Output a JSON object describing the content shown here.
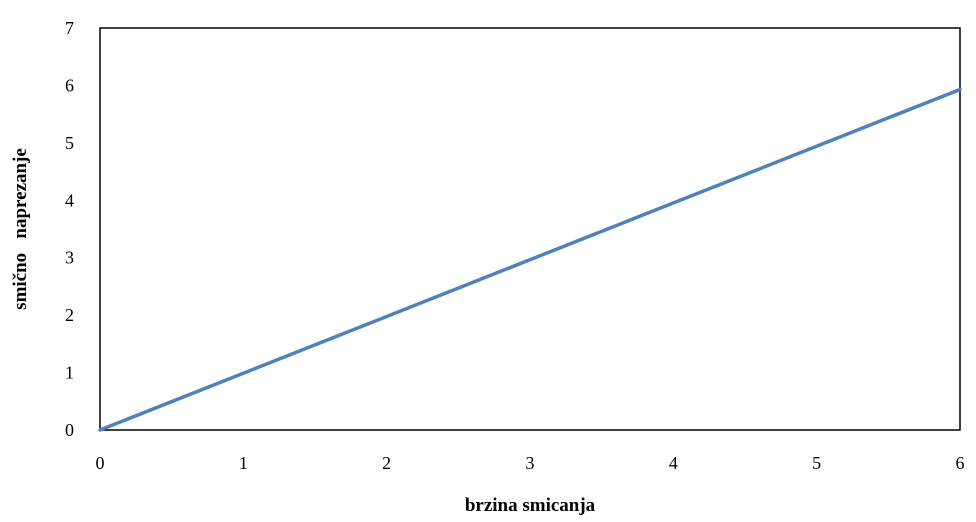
{
  "chart_data": {
    "type": "line",
    "title": "",
    "xlabel": "brzina smicanja",
    "ylabel": "smično   naprezanje",
    "xlim": [
      0,
      6
    ],
    "ylim": [
      0,
      7
    ],
    "xticks": [
      "0",
      "1",
      "2",
      "3",
      "4",
      "5",
      "6"
    ],
    "yticks": [
      "0",
      "1",
      "2",
      "3",
      "4",
      "5",
      "6",
      "7"
    ],
    "grid": false,
    "legend": "none",
    "series": [
      {
        "x": [
          0,
          6
        ],
        "y": [
          0,
          5.93
        ],
        "color": "#4F81BD"
      }
    ]
  }
}
